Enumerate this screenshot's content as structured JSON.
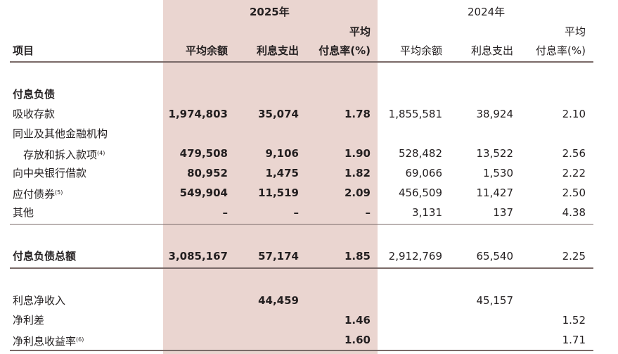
{
  "header": {
    "year_2025": "2025年",
    "year_2024": "2024年",
    "item_label": "项目",
    "avg_balance": "平均余额",
    "interest_expense": "利息支出",
    "rate_top": "平均",
    "rate_bottom": "付息率(%)"
  },
  "rows": [
    {
      "label": "付息负债",
      "section": true
    },
    {
      "label": "吸收存款",
      "v": [
        "1,974,803",
        "35,074",
        "1.78",
        "1,855,581",
        "38,924",
        "2.10"
      ]
    },
    {
      "label": "同业及其他金融机构"
    },
    {
      "label": "存放和拆入款项",
      "note": "(4)",
      "v": [
        "479,508",
        "9,106",
        "1.90",
        "528,482",
        "13,522",
        "2.56"
      ]
    },
    {
      "label": "向中央银行借款",
      "v": [
        "80,952",
        "1,475",
        "1.82",
        "69,066",
        "1,530",
        "2.22"
      ]
    },
    {
      "label": "应付债券",
      "note": "(5)",
      "v": [
        "549,904",
        "11,519",
        "2.09",
        "456,509",
        "11,427",
        "2.50"
      ]
    },
    {
      "label": "其他",
      "v": [
        "–",
        "–",
        "–",
        "3,131",
        "137",
        "4.38"
      ]
    },
    {
      "label": "付息负债总额",
      "v": [
        "3,085,167",
        "57,174",
        "1.85",
        "2,912,769",
        "65,540",
        "2.25"
      ]
    },
    {
      "label": "利息净收入",
      "v": [
        "",
        "44,459",
        "",
        "",
        "45,157",
        ""
      ]
    },
    {
      "label": "净利差",
      "v": [
        "",
        "",
        "1.46",
        "",
        "",
        "1.52"
      ]
    },
    {
      "label": "净利息收益率",
      "note": "(6)",
      "v": [
        "",
        "",
        "1.60",
        "",
        "",
        "1.71"
      ]
    }
  ]
}
